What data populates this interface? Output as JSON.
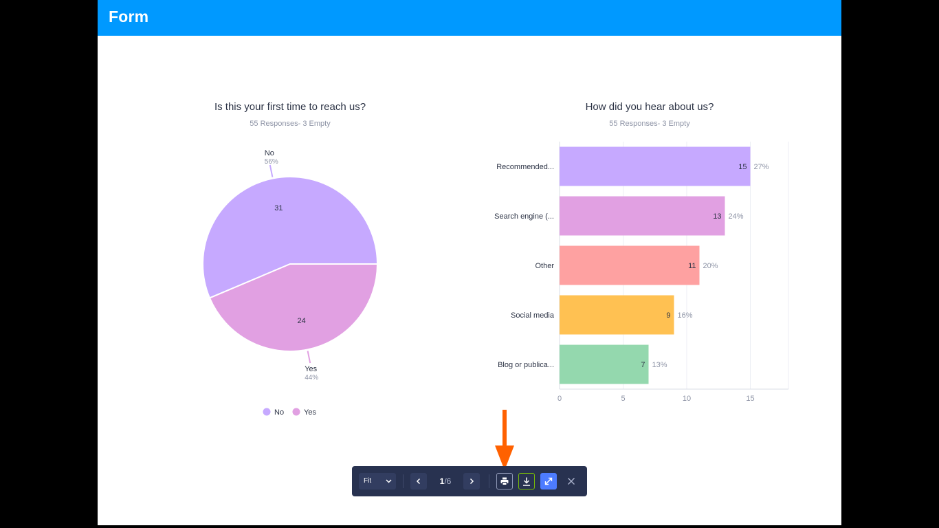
{
  "app": {
    "title": "Form"
  },
  "charts": [
    {
      "title": "Is this your first time to reach us?",
      "subtitle": "55 Responses- 3 Empty"
    },
    {
      "title": "How did you hear about us?",
      "subtitle": "55 Responses- 3 Empty"
    }
  ],
  "chart_data": [
    {
      "type": "pie",
      "title": "Is this your first time to reach us?",
      "categories": [
        "No",
        "Yes"
      ],
      "values": [
        31,
        24
      ],
      "percent_labels": [
        "56%",
        "44%"
      ],
      "colors": [
        "#c6a9ff",
        "#e1a0e2"
      ],
      "legend": {
        "position": "bottom",
        "entries": [
          "No",
          "Yes"
        ]
      }
    },
    {
      "type": "bar",
      "orientation": "horizontal",
      "title": "How did you hear about us?",
      "categories": [
        "Recommended...",
        "Search engine (...",
        "Other",
        "Social media",
        "Blog or publica..."
      ],
      "values": [
        15,
        13,
        11,
        9,
        7
      ],
      "percent_labels": [
        "27%",
        "24%",
        "20%",
        "16%",
        "13%"
      ],
      "colors": [
        "#c6a9ff",
        "#e1a0e2",
        "#fea1a1",
        "#ffc152",
        "#94d8ae"
      ],
      "xlim": [
        0,
        18
      ],
      "xticks": [
        "0",
        "5",
        "10",
        "15"
      ],
      "grid": true
    }
  ],
  "toolbar": {
    "zoom_value": "Fit",
    "page_current": "1",
    "page_separator": "/",
    "page_total": "6",
    "icons": [
      "chevron-down-icon",
      "chevron-left-icon",
      "chevron-right-icon",
      "print-icon",
      "download-icon",
      "expand-icon",
      "close-icon"
    ],
    "colors": {
      "background": "#283250",
      "download": "#78bb07",
      "expand": "#4d7cff"
    }
  },
  "annotation": {
    "arrow_color": "#ff6100"
  }
}
